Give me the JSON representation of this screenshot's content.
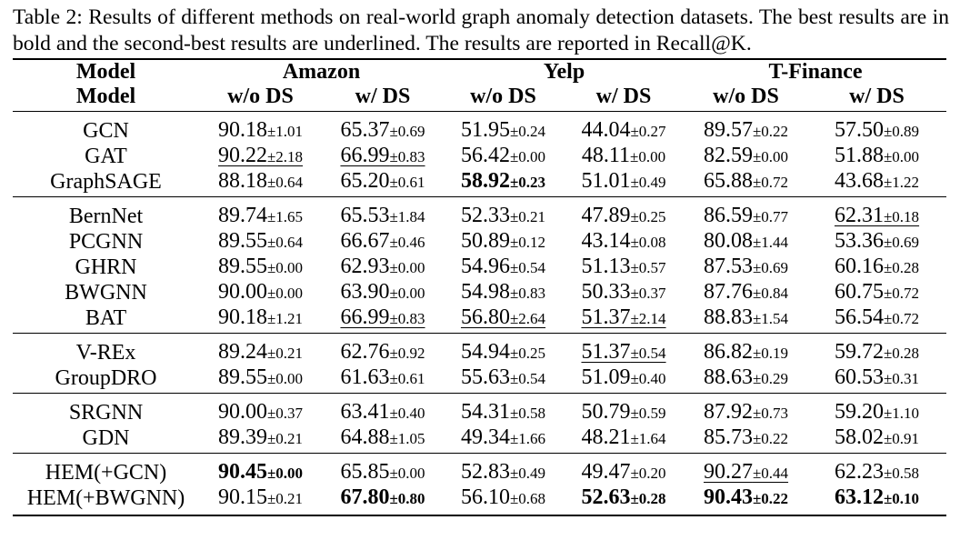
{
  "caption": "Table 2: Results of different methods on real-world graph anomaly detection datasets. The best results are in bold and the second-best results are underlined. The results are reported in Recall@K.",
  "table": {
    "header_row1": {
      "model": "Model",
      "datasets": [
        "Amazon",
        "Yelp",
        "T-Finance"
      ]
    },
    "header_row2": {
      "model": "Model",
      "subcols": [
        "w/o DS",
        "w/ DS",
        "w/o DS",
        "w/ DS",
        "w/o DS",
        "w/ DS"
      ]
    },
    "groups": [
      {
        "rows": [
          {
            "model": "GCN",
            "bold_model": false,
            "cells": [
              {
                "v": "90.18",
                "sd": "±1.01",
                "bold": false,
                "ul": false
              },
              {
                "v": "65.37",
                "sd": "±0.69",
                "bold": false,
                "ul": false
              },
              {
                "v": "51.95",
                "sd": "±0.24",
                "bold": false,
                "ul": false
              },
              {
                "v": "44.04",
                "sd": "±0.27",
                "bold": false,
                "ul": false
              },
              {
                "v": "89.57",
                "sd": "±0.22",
                "bold": false,
                "ul": false
              },
              {
                "v": "57.50",
                "sd": "±0.89",
                "bold": false,
                "ul": false
              }
            ]
          },
          {
            "model": "GAT",
            "bold_model": false,
            "cells": [
              {
                "v": "90.22",
                "sd": "±2.18",
                "bold": false,
                "ul": true
              },
              {
                "v": "66.99",
                "sd": "±0.83",
                "bold": false,
                "ul": true
              },
              {
                "v": "56.42",
                "sd": "±0.00",
                "bold": false,
                "ul": false
              },
              {
                "v": "48.11",
                "sd": "±0.00",
                "bold": false,
                "ul": false
              },
              {
                "v": "82.59",
                "sd": "±0.00",
                "bold": false,
                "ul": false
              },
              {
                "v": "51.88",
                "sd": "±0.00",
                "bold": false,
                "ul": false
              }
            ]
          },
          {
            "model": "GraphSAGE",
            "bold_model": false,
            "cells": [
              {
                "v": "88.18",
                "sd": "±0.64",
                "bold": false,
                "ul": false
              },
              {
                "v": "65.20",
                "sd": "±0.61",
                "bold": false,
                "ul": false
              },
              {
                "v": "58.92",
                "sd": "±0.23",
                "bold": true,
                "ul": false
              },
              {
                "v": "51.01",
                "sd": "±0.49",
                "bold": false,
                "ul": false
              },
              {
                "v": "65.88",
                "sd": "±0.72",
                "bold": false,
                "ul": false
              },
              {
                "v": "43.68",
                "sd": "±1.22",
                "bold": false,
                "ul": false
              }
            ]
          }
        ]
      },
      {
        "rows": [
          {
            "model": "BernNet",
            "bold_model": false,
            "cells": [
              {
                "v": "89.74",
                "sd": "±1.65",
                "bold": false,
                "ul": false
              },
              {
                "v": "65.53",
                "sd": "±1.84",
                "bold": false,
                "ul": false
              },
              {
                "v": "52.33",
                "sd": "±0.21",
                "bold": false,
                "ul": false
              },
              {
                "v": "47.89",
                "sd": "±0.25",
                "bold": false,
                "ul": false
              },
              {
                "v": "86.59",
                "sd": "±0.77",
                "bold": false,
                "ul": false
              },
              {
                "v": "62.31",
                "sd": "±0.18",
                "bold": false,
                "ul": true
              }
            ]
          },
          {
            "model": "PCGNN",
            "bold_model": false,
            "cells": [
              {
                "v": "89.55",
                "sd": "±0.64",
                "bold": false,
                "ul": false
              },
              {
                "v": "66.67",
                "sd": "±0.46",
                "bold": false,
                "ul": false
              },
              {
                "v": "50.89",
                "sd": "±0.12",
                "bold": false,
                "ul": false
              },
              {
                "v": "43.14",
                "sd": "±0.08",
                "bold": false,
                "ul": false
              },
              {
                "v": "80.08",
                "sd": "±1.44",
                "bold": false,
                "ul": false
              },
              {
                "v": "53.36",
                "sd": "±0.69",
                "bold": false,
                "ul": false
              }
            ]
          },
          {
            "model": "GHRN",
            "bold_model": false,
            "cells": [
              {
                "v": "89.55",
                "sd": "±0.00",
                "bold": false,
                "ul": false
              },
              {
                "v": "62.93",
                "sd": "±0.00",
                "bold": false,
                "ul": false
              },
              {
                "v": "54.96",
                "sd": "±0.54",
                "bold": false,
                "ul": false
              },
              {
                "v": "51.13",
                "sd": "±0.57",
                "bold": false,
                "ul": false
              },
              {
                "v": "87.53",
                "sd": "±0.69",
                "bold": false,
                "ul": false
              },
              {
                "v": "60.16",
                "sd": "±0.28",
                "bold": false,
                "ul": false
              }
            ]
          },
          {
            "model": "BWGNN",
            "bold_model": false,
            "cells": [
              {
                "v": "90.00",
                "sd": "±0.00",
                "bold": false,
                "ul": false
              },
              {
                "v": "63.90",
                "sd": "±0.00",
                "bold": false,
                "ul": false
              },
              {
                "v": "54.98",
                "sd": "±0.83",
                "bold": false,
                "ul": false
              },
              {
                "v": "50.33",
                "sd": "±0.37",
                "bold": false,
                "ul": false
              },
              {
                "v": "87.76",
                "sd": "±0.84",
                "bold": false,
                "ul": false
              },
              {
                "v": "60.75",
                "sd": "±0.72",
                "bold": false,
                "ul": false
              }
            ]
          },
          {
            "model": "BAT",
            "bold_model": false,
            "cells": [
              {
                "v": "90.18",
                "sd": "±1.21",
                "bold": false,
                "ul": false
              },
              {
                "v": "66.99",
                "sd": "±0.83",
                "bold": false,
                "ul": true
              },
              {
                "v": "56.80",
                "sd": "±2.64",
                "bold": false,
                "ul": true
              },
              {
                "v": "51.37",
                "sd": "±2.14",
                "bold": false,
                "ul": true
              },
              {
                "v": "88.83",
                "sd": "±1.54",
                "bold": false,
                "ul": false
              },
              {
                "v": "56.54",
                "sd": "±0.72",
                "bold": false,
                "ul": false
              }
            ]
          }
        ]
      },
      {
        "rows": [
          {
            "model": "V-REx",
            "bold_model": false,
            "cells": [
              {
                "v": "89.24",
                "sd": "±0.21",
                "bold": false,
                "ul": false
              },
              {
                "v": "62.76",
                "sd": "±0.92",
                "bold": false,
                "ul": false
              },
              {
                "v": "54.94",
                "sd": "±0.25",
                "bold": false,
                "ul": false
              },
              {
                "v": "51.37",
                "sd": "±0.54",
                "bold": false,
                "ul": true
              },
              {
                "v": "86.82",
                "sd": "±0.19",
                "bold": false,
                "ul": false
              },
              {
                "v": "59.72",
                "sd": "±0.28",
                "bold": false,
                "ul": false
              }
            ]
          },
          {
            "model": "GroupDRO",
            "bold_model": false,
            "cells": [
              {
                "v": "89.55",
                "sd": "±0.00",
                "bold": false,
                "ul": false
              },
              {
                "v": "61.63",
                "sd": "±0.61",
                "bold": false,
                "ul": false
              },
              {
                "v": "55.63",
                "sd": "±0.54",
                "bold": false,
                "ul": false
              },
              {
                "v": "51.09",
                "sd": "±0.40",
                "bold": false,
                "ul": false
              },
              {
                "v": "88.63",
                "sd": "±0.29",
                "bold": false,
                "ul": false
              },
              {
                "v": "60.53",
                "sd": "±0.31",
                "bold": false,
                "ul": false
              }
            ]
          }
        ]
      },
      {
        "rows": [
          {
            "model": "SRGNN",
            "bold_model": false,
            "cells": [
              {
                "v": "90.00",
                "sd": "±0.37",
                "bold": false,
                "ul": false
              },
              {
                "v": "63.41",
                "sd": "±0.40",
                "bold": false,
                "ul": false
              },
              {
                "v": "54.31",
                "sd": "±0.58",
                "bold": false,
                "ul": false
              },
              {
                "v": "50.79",
                "sd": "±0.59",
                "bold": false,
                "ul": false
              },
              {
                "v": "87.92",
                "sd": "±0.73",
                "bold": false,
                "ul": false
              },
              {
                "v": "59.20",
                "sd": "±1.10",
                "bold": false,
                "ul": false
              }
            ]
          },
          {
            "model": "GDN",
            "bold_model": false,
            "cells": [
              {
                "v": "89.39",
                "sd": "±0.21",
                "bold": false,
                "ul": false
              },
              {
                "v": "64.88",
                "sd": "±1.05",
                "bold": false,
                "ul": false
              },
              {
                "v": "49.34",
                "sd": "±1.66",
                "bold": false,
                "ul": false
              },
              {
                "v": "48.21",
                "sd": "±1.64",
                "bold": false,
                "ul": false
              },
              {
                "v": "85.73",
                "sd": "±0.22",
                "bold": false,
                "ul": false
              },
              {
                "v": "58.02",
                "sd": "±0.91",
                "bold": false,
                "ul": false
              }
            ]
          }
        ]
      },
      {
        "rows": [
          {
            "model": "HEM(+GCN)",
            "bold_model": true,
            "cells": [
              {
                "v": "90.45",
                "sd": "±0.00",
                "bold": true,
                "ul": false
              },
              {
                "v": "65.85",
                "sd": "±0.00",
                "bold": false,
                "ul": false
              },
              {
                "v": "52.83",
                "sd": "±0.49",
                "bold": false,
                "ul": false
              },
              {
                "v": "49.47",
                "sd": "±0.20",
                "bold": false,
                "ul": false
              },
              {
                "v": "90.27",
                "sd": "±0.44",
                "bold": false,
                "ul": true
              },
              {
                "v": "62.23",
                "sd": "±0.58",
                "bold": false,
                "ul": false
              }
            ]
          },
          {
            "model": "HEM(+BWGNN)",
            "bold_model": true,
            "cells": [
              {
                "v": "90.15",
                "sd": "±0.21",
                "bold": false,
                "ul": false
              },
              {
                "v": "67.80",
                "sd": "±0.80",
                "bold": true,
                "ul": false
              },
              {
                "v": "56.10",
                "sd": "±0.68",
                "bold": false,
                "ul": false
              },
              {
                "v": "52.63",
                "sd": "±0.28",
                "bold": true,
                "ul": false
              },
              {
                "v": "90.43",
                "sd": "±0.22",
                "bold": true,
                "ul": false
              },
              {
                "v": "63.12",
                "sd": "±0.10",
                "bold": true,
                "ul": false
              }
            ]
          }
        ]
      }
    ]
  }
}
